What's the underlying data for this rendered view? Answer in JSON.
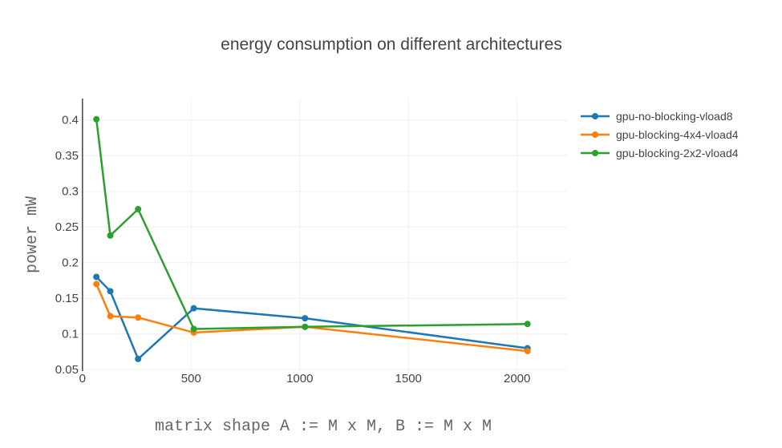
{
  "chart_data": {
    "type": "line",
    "title": "energy consumption on different architectures",
    "xlabel": "matrix shape A := M x M, B := M x M",
    "ylabel": "power mW",
    "xlim": [
      -40,
      2230
    ],
    "ylim": [
      0.048,
      0.43
    ],
    "xticks": [
      0,
      500,
      1000,
      1500,
      2000
    ],
    "xtick_labels": [
      "0",
      "500",
      "1000",
      "1500",
      "2000"
    ],
    "yticks": [
      0.05,
      0.1,
      0.15,
      0.2,
      0.25,
      0.3,
      0.35,
      0.4
    ],
    "ytick_labels": [
      "0.05",
      "0.1",
      "0.15",
      "0.2",
      "0.25",
      "0.3",
      "0.35",
      "0.4"
    ],
    "grid": true,
    "legend_position": "top-right",
    "x": [
      64,
      128,
      256,
      512,
      1024,
      2048
    ],
    "series": [
      {
        "name": "gpu-no-blocking-vload8",
        "color": "#1f77b4",
        "values": [
          0.18,
          0.16,
          0.065,
          0.136,
          0.122,
          0.08
        ]
      },
      {
        "name": "gpu-blocking-4x4-vload4",
        "color": "#ff7f0e",
        "values": [
          0.17,
          0.125,
          0.123,
          0.102,
          0.11,
          0.076
        ]
      },
      {
        "name": "gpu-blocking-2x2-vload4",
        "color": "#2ca02c",
        "values": [
          0.401,
          0.238,
          0.275,
          0.107,
          0.11,
          0.114
        ]
      }
    ]
  }
}
